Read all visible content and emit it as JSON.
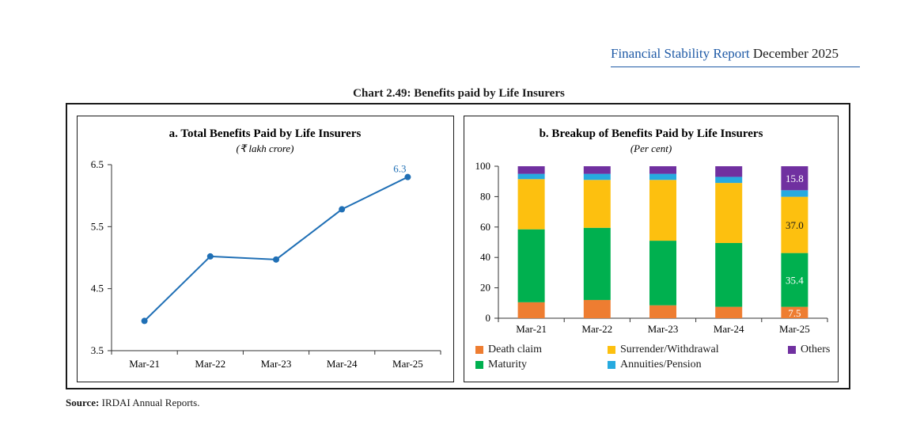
{
  "header": {
    "report_name": "Financial Stability Report",
    "report_date": "December 2025"
  },
  "figure_title": "Chart 2.49: Benefits paid by Life Insurers",
  "source": {
    "label": "Source:",
    "text": "IRDAI Annual Reports."
  },
  "chart_data": [
    {
      "type": "line",
      "title": "a. Total Benefits Paid by Life Insurers",
      "subtitle": "(₹ lakh crore)",
      "categories": [
        "Mar-21",
        "Mar-22",
        "Mar-23",
        "Mar-24",
        "Mar-25"
      ],
      "values": [
        3.98,
        5.02,
        4.97,
        5.78,
        6.3
      ],
      "data_labels": {
        "Mar-25": "6.3"
      },
      "ylim": [
        3.5,
        6.5
      ],
      "yticks": [
        "3.5",
        "4.5",
        "5.5",
        "6.5"
      ],
      "color": "#1f6fb5",
      "grid": false
    },
    {
      "type": "bar",
      "stacked": true,
      "title": "b. Breakup of Benefits Paid by Life Insurers",
      "subtitle": "(Per cent)",
      "categories": [
        "Mar-21",
        "Mar-22",
        "Mar-23",
        "Mar-24",
        "Mar-25"
      ],
      "ylim": [
        0,
        100
      ],
      "yticks": [
        "0",
        "20",
        "40",
        "60",
        "80",
        "100"
      ],
      "series": [
        {
          "name": "Death claim",
          "color": "#ee7d31",
          "values": [
            10.5,
            12.0,
            8.5,
            7.5,
            7.5
          ]
        },
        {
          "name": "Maturity",
          "color": "#00b04f",
          "values": [
            48.0,
            47.5,
            42.5,
            42.0,
            35.4
          ]
        },
        {
          "name": "Surrender/Withdrawal",
          "color": "#fdc00f",
          "values": [
            33.0,
            31.5,
            40.0,
            39.5,
            37.0
          ]
        },
        {
          "name": "Annuities/Pension",
          "color": "#27aadf",
          "values": [
            3.5,
            4.0,
            4.0,
            4.0,
            4.3
          ]
        },
        {
          "name": "Others",
          "color": "#7030a0",
          "values": [
            5.0,
            5.0,
            5.0,
            7.0,
            15.8
          ]
        }
      ],
      "data_labels": [
        {
          "category": "Mar-25",
          "series": "Death claim",
          "text": "7.5"
        },
        {
          "category": "Mar-25",
          "series": "Maturity",
          "text": "35.4"
        },
        {
          "category": "Mar-25",
          "series": "Surrender/Withdrawal",
          "text": "37.0"
        },
        {
          "category": "Mar-25",
          "series": "Others",
          "text": "15.8"
        }
      ],
      "legend_position": "bottom"
    }
  ]
}
